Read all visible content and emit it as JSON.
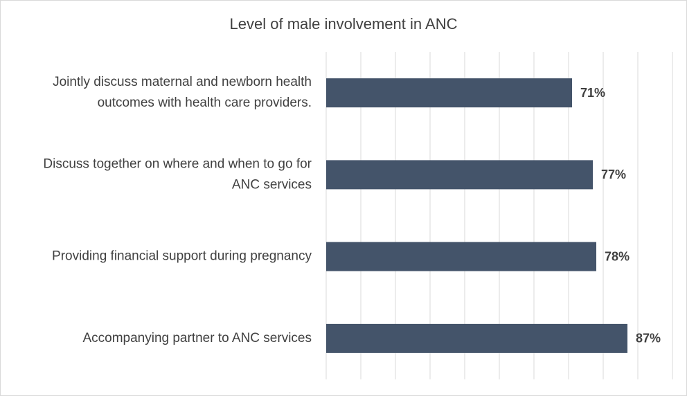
{
  "chart_data": {
    "type": "bar",
    "orientation": "horizontal",
    "title": "Level of male involvement in ANC",
    "categories": [
      [
        "Jointly discuss maternal and newborn health",
        "outcomes with health care providers."
      ],
      [
        "Discuss together on where and when to go for",
        "ANC services"
      ],
      [
        "Providing financial support during pregnancy"
      ],
      [
        "Accompanying partner to ANC services"
      ]
    ],
    "values": [
      71,
      77,
      78,
      87
    ],
    "value_labels": [
      "71%",
      "77%",
      "78%",
      "87%"
    ],
    "color": "#44546a",
    "xlim": [
      0,
      100
    ],
    "xticks": [
      0,
      10,
      20,
      30,
      40,
      50,
      60,
      70,
      80,
      90,
      100
    ],
    "grid": true,
    "tick_labels": false
  }
}
